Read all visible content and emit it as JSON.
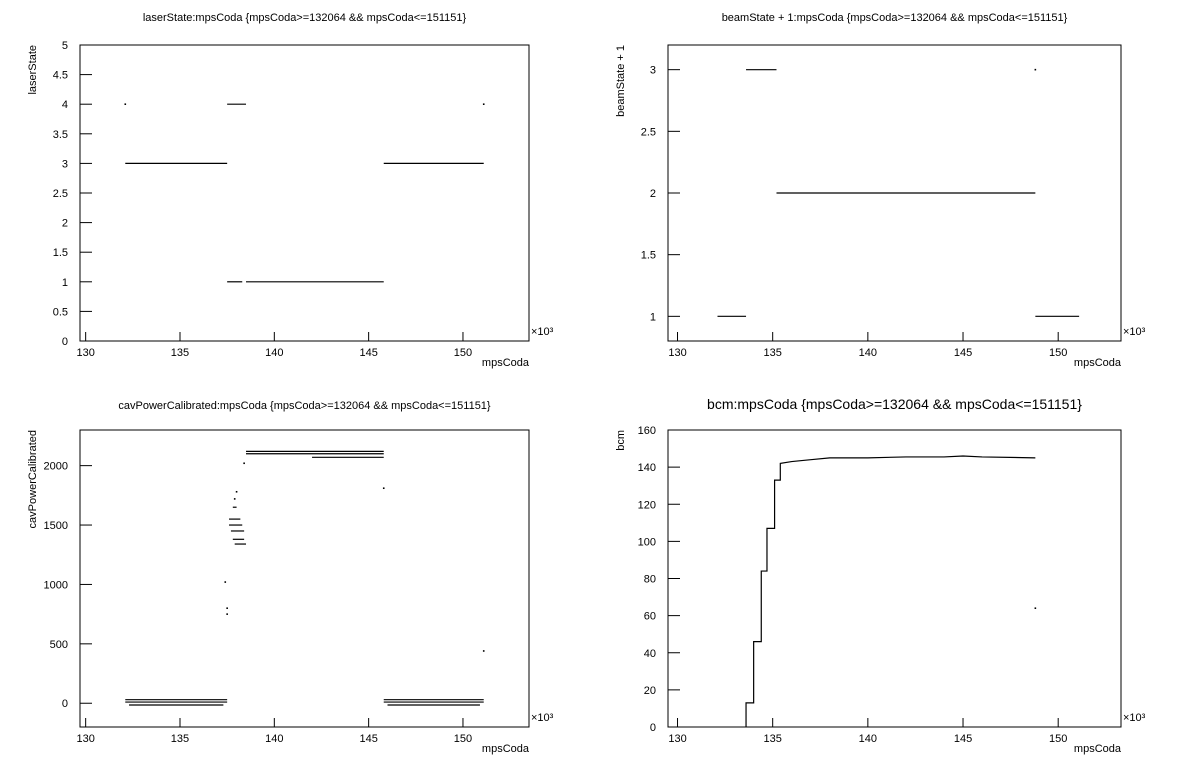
{
  "chart_data": [
    {
      "type": "line",
      "title": "laserState:mpsCoda {mpsCoda>=132064 && mpsCoda<=151151}",
      "x_label": "mpsCoda",
      "y_label": "laserState",
      "x_multiplier": "×10³",
      "color": "#000000",
      "xlim": [
        129.7,
        153.5
      ],
      "xticks": [
        130,
        135,
        140,
        145,
        150
      ],
      "ylim": [
        0,
        5
      ],
      "yticks": [
        0,
        0.5,
        1,
        1.5,
        2,
        2.5,
        3,
        3.5,
        4,
        4.5,
        5
      ],
      "x": [
        132.1,
        null,
        132.1,
        137.5,
        null,
        137.5,
        138.5,
        null,
        137.5,
        138.3,
        null,
        138.5,
        145.8,
        null,
        145.8,
        151.1,
        null,
        151.1
      ],
      "values": [
        4,
        null,
        3,
        3,
        null,
        4,
        4,
        null,
        1,
        1,
        null,
        1,
        1,
        null,
        3,
        3,
        null,
        4
      ]
    },
    {
      "type": "line",
      "title": "beamState + 1:mpsCoda {mpsCoda>=132064 && mpsCoda<=151151}",
      "x_label": "mpsCoda",
      "y_label": "beamState + 1",
      "x_multiplier": "×10³",
      "color": "#000000",
      "xlim": [
        129.5,
        153.3
      ],
      "xticks": [
        130,
        135,
        140,
        145,
        150
      ],
      "ylim": [
        0.8,
        3.2
      ],
      "yticks": [
        1,
        1.5,
        2,
        2.5,
        3
      ],
      "x": [
        132.1,
        133.6,
        null,
        133.6,
        135.2,
        null,
        135.2,
        148.8,
        null,
        148.8,
        null,
        148.8,
        151.1
      ],
      "values": [
        1,
        1,
        null,
        3,
        3,
        null,
        2,
        2,
        null,
        3,
        null,
        1,
        1
      ]
    },
    {
      "type": "line",
      "title": "cavPowerCalibrated:mpsCoda {mpsCoda>=132064 && mpsCoda<=151151}",
      "x_label": "mpsCoda",
      "y_label": "cavPowerCalibrated",
      "x_multiplier": "×10³",
      "color": "#000000",
      "xlim": [
        129.7,
        153.5
      ],
      "xticks": [
        130,
        135,
        140,
        145,
        150
      ],
      "ylim": [
        -200,
        2300
      ],
      "yticks": [
        0,
        500,
        1000,
        1500,
        2000
      ],
      "x": [
        132.1,
        137.5,
        null,
        132.1,
        137.5,
        null,
        132.3,
        137.3,
        null,
        137.4,
        null,
        137.5,
        null,
        137.5,
        null,
        138.0,
        null,
        137.9,
        null,
        137.8,
        138.0,
        null,
        137.6,
        138.2,
        null,
        137.6,
        138.3,
        null,
        137.7,
        138.4,
        null,
        137.8,
        138.4,
        null,
        137.9,
        138.5,
        null,
        138.4,
        null,
        138.5,
        145.8,
        null,
        138.5,
        145.8,
        null,
        142.0,
        145.8,
        null,
        145.8,
        null,
        145.8,
        151.1,
        null,
        145.8,
        151.1,
        null,
        146.0,
        150.9,
        null,
        151.1
      ],
      "values": [
        30,
        30,
        null,
        10,
        10,
        null,
        -15,
        -15,
        null,
        1020,
        null,
        800,
        null,
        750,
        null,
        1780,
        null,
        1720,
        null,
        1650,
        1650,
        null,
        1550,
        1550,
        null,
        1500,
        1500,
        null,
        1450,
        1450,
        null,
        1380,
        1380,
        null,
        1340,
        1340,
        null,
        2020,
        null,
        2120,
        2120,
        null,
        2100,
        2100,
        null,
        2070,
        2070,
        null,
        1810,
        null,
        30,
        30,
        null,
        10,
        10,
        null,
        -15,
        -15,
        null,
        440
      ]
    },
    {
      "type": "line",
      "title": "bcm:mpsCoda {mpsCoda>=132064 && mpsCoda<=151151}",
      "x_label": "mpsCoda",
      "y_label": "bcm",
      "x_multiplier": "×10³",
      "color": "#000000",
      "xlim": [
        129.5,
        153.3
      ],
      "xticks": [
        130,
        135,
        140,
        145,
        150
      ],
      "ylim": [
        0,
        160
      ],
      "yticks": [
        0,
        20,
        40,
        60,
        80,
        100,
        120,
        140,
        160
      ],
      "x": [
        133.6,
        133.6,
        134.0,
        134.0,
        134.4,
        134.4,
        134.7,
        134.7,
        135.1,
        135.1,
        135.4,
        135.4,
        136,
        137,
        138,
        140,
        142,
        144,
        145,
        146,
        148.8,
        null,
        148.8
      ],
      "values": [
        0,
        13,
        13,
        46,
        46,
        84,
        84,
        107,
        107,
        133,
        133,
        142,
        143,
        144,
        145,
        145,
        145.5,
        145.5,
        146,
        145.5,
        145,
        null,
        64
      ]
    }
  ]
}
